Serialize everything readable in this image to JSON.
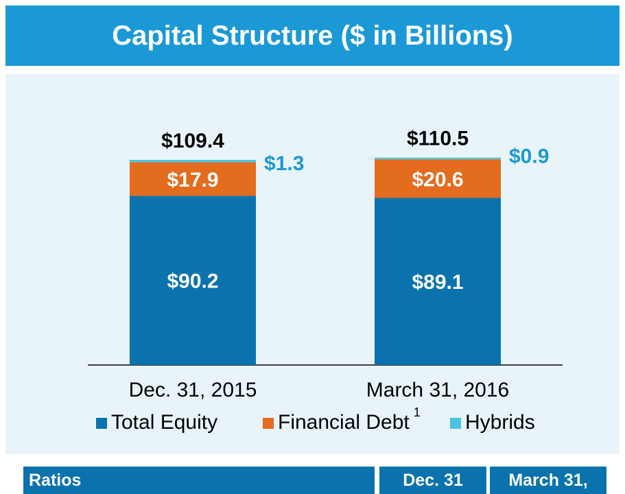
{
  "title": "Capital Structure ($ in Billions)",
  "colors": {
    "title_bg": "#1b99d6",
    "panel_bg": "#e9f4fa",
    "total_equity": "#0a73ad",
    "financial_debt": "#e36c1e",
    "hybrids": "#4ec3e0",
    "hybrid_label": "#1b99d6"
  },
  "chart_data": {
    "type": "bar",
    "stacked": true,
    "categories": [
      "Dec. 31, 2015",
      "March 31, 2016"
    ],
    "series": [
      {
        "name": "Total Equity",
        "values": [
          90.2,
          89.1
        ],
        "labels": [
          "$90.2",
          "$89.1"
        ]
      },
      {
        "name": "Financial Debt",
        "values": [
          17.9,
          20.6
        ],
        "labels": [
          "$17.9",
          "$20.6"
        ]
      },
      {
        "name": "Hybrids",
        "values": [
          1.3,
          0.9
        ],
        "labels": [
          "$1.3",
          "$0.9"
        ]
      }
    ],
    "totals": [
      109.4,
      110.5
    ],
    "total_labels": [
      "$109.4",
      "$110.5"
    ],
    "legend": [
      {
        "label": "Total Equity",
        "superscript": ""
      },
      {
        "label": "Financial Debt",
        "superscript": "1"
      },
      {
        "label": "Hybrids",
        "superscript": ""
      }
    ],
    "legend_position": "bottom",
    "ylim": [
      0,
      110.5
    ],
    "grid": false
  },
  "ratios": {
    "header": "Ratios",
    "col1": "Dec. 31",
    "col2": "March 31,"
  }
}
